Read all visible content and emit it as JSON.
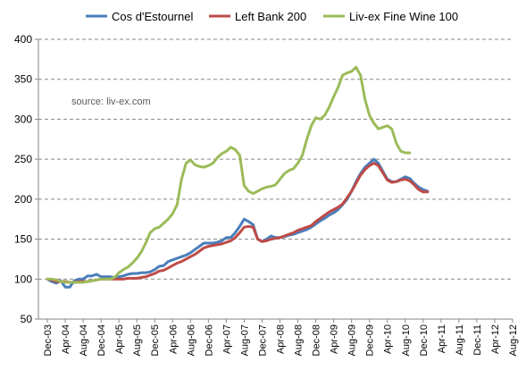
{
  "chart_data": {
    "type": "line",
    "title": "",
    "xlabel": "",
    "ylabel": "",
    "annotation": "source: liv-ex.com",
    "ylim": [
      50,
      400
    ],
    "y_ticks": [
      50,
      100,
      150,
      200,
      250,
      300,
      350,
      400
    ],
    "grid": "horizontal dashed",
    "legend_position": "top",
    "x_start": "Dec-03",
    "x_labels": [
      "Dec-03",
      "Apr-04",
      "Aug-04",
      "Dec-04",
      "Apr-05",
      "Aug-05",
      "Dec-05",
      "Apr-06",
      "Aug-06",
      "Dec-06",
      "Apr-07",
      "Aug-07",
      "Dec-07",
      "Apr-08",
      "Aug-08",
      "Dec-08",
      "Apr-09",
      "Aug-09",
      "Dec-09",
      "Apr-10",
      "Aug-10",
      "Dec-10",
      "Apr-11",
      "Aug-11",
      "Dec-11",
      "Apr-12",
      "Aug-12"
    ],
    "series": [
      {
        "name": "Cos d'Estournel",
        "color": "#4A7EBB",
        "values": [
          100,
          97,
          95,
          98,
          90,
          90,
          98,
          100,
          100,
          104,
          104,
          106,
          103,
          103,
          103,
          102,
          103,
          104,
          106,
          107,
          107,
          108,
          108,
          109,
          112,
          116,
          117,
          122,
          124,
          126,
          128,
          130,
          133,
          137,
          141,
          145,
          145,
          145,
          146,
          148,
          152,
          152,
          158,
          166,
          175,
          172,
          168,
          150,
          147,
          150,
          154,
          152,
          152,
          153,
          155,
          156,
          158,
          160,
          162,
          165,
          169,
          173,
          176,
          180,
          183,
          187,
          193,
          200,
          210,
          222,
          232,
          240,
          245,
          250,
          245,
          235,
          225,
          222,
          222,
          225,
          228,
          226,
          220,
          215,
          212,
          210
        ]
      },
      {
        "name": "Left Bank 200",
        "color": "#BE4B48",
        "values": [
          100,
          99,
          97,
          97,
          97,
          96,
          96,
          97,
          97,
          97,
          98,
          99,
          100,
          100,
          100,
          100,
          100,
          100,
          101,
          101,
          101,
          102,
          103,
          105,
          107,
          110,
          111,
          114,
          117,
          120,
          122,
          125,
          128,
          131,
          135,
          139,
          141,
          142,
          143,
          144,
          146,
          148,
          152,
          158,
          165,
          166,
          165,
          150,
          147,
          148,
          150,
          151,
          152,
          154,
          156,
          158,
          161,
          163,
          165,
          167,
          172,
          176,
          180,
          184,
          187,
          190,
          194,
          202,
          210,
          220,
          230,
          237,
          242,
          245,
          242,
          233,
          224,
          221,
          222,
          224,
          225,
          223,
          218,
          212,
          209,
          209
        ]
      },
      {
        "name": "Liv-ex Fine Wine 100",
        "color": "#9BBB59",
        "values": [
          100,
          100,
          99,
          97,
          96,
          96,
          96,
          96,
          96,
          97,
          98,
          99,
          100,
          100,
          100,
          102,
          108,
          112,
          115,
          120,
          126,
          134,
          145,
          158,
          163,
          165,
          170,
          175,
          182,
          193,
          225,
          245,
          249,
          243,
          241,
          240,
          242,
          245,
          252,
          257,
          260,
          265,
          262,
          255,
          217,
          210,
          207,
          210,
          213,
          215,
          216,
          218,
          225,
          232,
          236,
          238,
          245,
          255,
          275,
          292,
          302,
          300,
          305,
          315,
          328,
          340,
          355,
          358,
          360,
          365,
          355,
          325,
          305,
          295,
          288,
          290,
          292,
          288,
          270,
          260,
          258,
          258
        ]
      }
    ]
  }
}
